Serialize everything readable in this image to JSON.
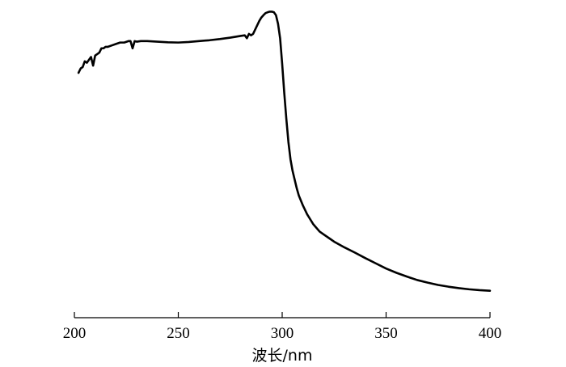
{
  "chart_data": {
    "type": "line",
    "xlabel": "波长/nm",
    "ylabel": "",
    "xlim": [
      200,
      400
    ],
    "ylim": [
      0,
      1
    ],
    "y_axis_shown": false,
    "grid": false,
    "x_ticks": [
      200,
      250,
      300,
      350,
      400
    ],
    "x_tick_labels": [
      "200",
      "250",
      "300",
      "350",
      "400"
    ],
    "series": [
      {
        "color": "#000000",
        "x": [
          202,
          203,
          204,
          205,
          206,
          207,
          208,
          209,
          210,
          211,
          212,
          213,
          214,
          215,
          216,
          218,
          220,
          222,
          224,
          226,
          227,
          228,
          229,
          230,
          232,
          235,
          240,
          245,
          250,
          255,
          260,
          265,
          270,
          275,
          280,
          282,
          283,
          284,
          285,
          286,
          287,
          288,
          289,
          290,
          291,
          292,
          293,
          294,
          295,
          296,
          297,
          298,
          299,
          300,
          301,
          302,
          303,
          304,
          305,
          306,
          307,
          308,
          310,
          312,
          315,
          318,
          320,
          323,
          325,
          330,
          335,
          340,
          345,
          350,
          355,
          360,
          365,
          370,
          375,
          380,
          385,
          390,
          395,
          400
        ],
        "y": [
          0.77,
          0.785,
          0.79,
          0.81,
          0.805,
          0.815,
          0.825,
          0.795,
          0.83,
          0.835,
          0.84,
          0.855,
          0.855,
          0.86,
          0.86,
          0.865,
          0.87,
          0.875,
          0.875,
          0.88,
          0.88,
          0.855,
          0.88,
          0.878,
          0.88,
          0.88,
          0.878,
          0.876,
          0.875,
          0.877,
          0.88,
          0.883,
          0.887,
          0.892,
          0.898,
          0.9,
          0.89,
          0.905,
          0.9,
          0.905,
          0.92,
          0.935,
          0.95,
          0.962,
          0.97,
          0.977,
          0.98,
          0.982,
          0.982,
          0.98,
          0.97,
          0.94,
          0.89,
          0.8,
          0.7,
          0.61,
          0.53,
          0.47,
          0.43,
          0.4,
          0.37,
          0.345,
          0.31,
          0.28,
          0.245,
          0.22,
          0.21,
          0.195,
          0.185,
          0.165,
          0.147,
          0.128,
          0.11,
          0.092,
          0.077,
          0.064,
          0.052,
          0.043,
          0.035,
          0.029,
          0.024,
          0.02,
          0.017,
          0.015
        ]
      }
    ]
  }
}
